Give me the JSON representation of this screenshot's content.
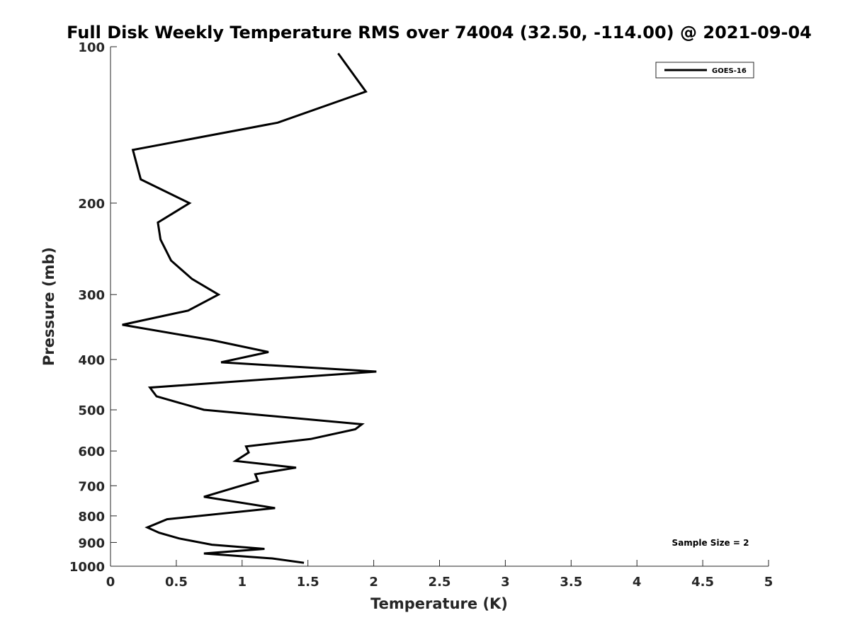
{
  "chart_data": {
    "type": "line",
    "title": "Full Disk Weekly Temperature RMS over 74004 (32.50, -114.00) @ 2021-09-04",
    "xlabel": "Temperature (K)",
    "ylabel": "Pressure (mb)",
    "xlim": [
      0,
      5
    ],
    "ylim": [
      100,
      1000
    ],
    "yscale": "log",
    "y_reversed": true,
    "xticks": [
      0,
      0.5,
      1,
      1.5,
      2,
      2.5,
      3,
      3.5,
      4,
      4.5,
      5
    ],
    "xtick_labels": [
      "0",
      "0.5",
      "1",
      "1.5",
      "2",
      "2.5",
      "3",
      "3.5",
      "4",
      "4.5",
      "5"
    ],
    "yticks": [
      100,
      200,
      300,
      400,
      500,
      600,
      700,
      800,
      900,
      1000
    ],
    "ytick_labels": [
      "100",
      "200",
      "300",
      "400",
      "500",
      "600",
      "700",
      "800",
      "900",
      "1000"
    ],
    "grid": false,
    "legend_position": "top-right",
    "series": [
      {
        "name": "GOES-16",
        "color": "#000000",
        "x": [
          1.73,
          1.94,
          1.27,
          0.17,
          0.23,
          0.6,
          0.36,
          0.38,
          0.46,
          0.62,
          0.82,
          0.59,
          0.09,
          0.77,
          1.2,
          0.84,
          2.02,
          0.3,
          0.35,
          0.71,
          1.91,
          1.86,
          1.52,
          1.03,
          1.05,
          0.95,
          1.41,
          1.1,
          1.12,
          0.96,
          0.71,
          1.25,
          0.43,
          0.28,
          0.37,
          0.52,
          0.77,
          1.17,
          0.71,
          1.23,
          1.47
        ],
        "y": [
          103,
          122,
          140,
          158,
          180,
          200,
          218,
          235,
          258,
          280,
          300,
          322,
          343,
          367,
          387,
          405,
          422,
          453,
          471,
          500,
          533,
          545,
          569,
          588,
          604,
          627,
          646,
          665,
          685,
          704,
          735,
          773,
          812,
          842,
          862,
          884,
          909,
          926,
          945,
          966,
          985
        ]
      }
    ],
    "annotations": [
      "Sample Size = 2"
    ]
  }
}
